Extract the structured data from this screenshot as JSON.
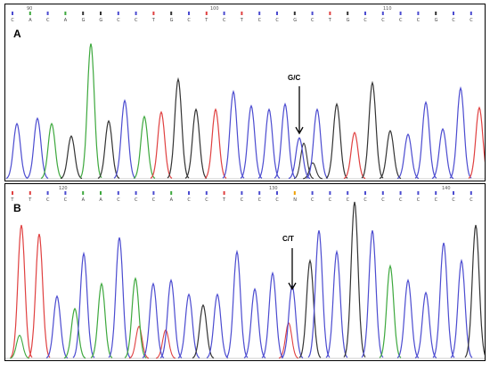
{
  "figure": {
    "panels": [
      {
        "id": "A",
        "letter": "A",
        "mutation_label": "G/C",
        "positions": [
          "90",
          "100",
          "110"
        ],
        "bases": [
          "C",
          "C",
          "T",
          "G",
          "T",
          "G",
          "C",
          "C",
          "T",
          "G",
          "C",
          "T",
          "C",
          "T",
          "C",
          "C",
          "G",
          "C",
          "T",
          "G",
          "C",
          "C",
          "C",
          "C",
          "C"
        ]
      },
      {
        "id": "B",
        "letter": "B",
        "mutation_label": "C/T",
        "positions": [
          "120",
          "130",
          "140"
        ],
        "bases": [
          "T",
          "T",
          "C",
          "C",
          "C",
          "C",
          "C",
          "C",
          "C",
          "C",
          "C",
          "T",
          "C",
          "C",
          "C",
          "C",
          "C",
          "C",
          "C",
          "C",
          "C",
          "C",
          "C",
          "C",
          "C"
        ]
      }
    ],
    "colors": {
      "A": "#3da83d",
      "C": "#4b4bd0",
      "G": "#333333",
      "T": "#e04040",
      "N": "#f0a000"
    }
  }
}
